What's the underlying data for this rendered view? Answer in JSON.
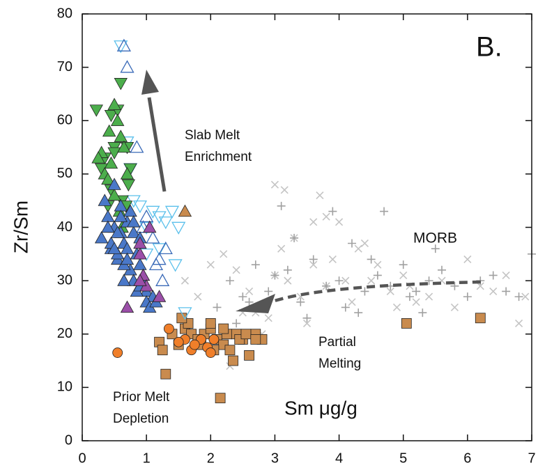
{
  "chart_data": {
    "type": "scatter",
    "y_label": "Zr/Sm",
    "x_label": "Sm μg/g",
    "annotations": {
      "panel": "B.",
      "slab_melt": [
        "Slab Melt",
        "Enrichment"
      ],
      "morb": "MORB",
      "partial_melting": [
        "Partial",
        "Melting"
      ],
      "prior_melt": [
        "Prior Melt",
        "Depletion"
      ]
    },
    "xlim": [
      0,
      7
    ],
    "xticks": [
      0,
      1,
      2,
      3,
      4,
      5,
      6,
      7
    ],
    "ylim": [
      0,
      80
    ],
    "yticks": [
      0,
      10,
      20,
      30,
      40,
      50,
      60,
      70,
      80
    ],
    "series": [
      {
        "marker": "x",
        "color": "#c4c4c4",
        "fill": false,
        "x": [
          1.6,
          1.8,
          2.0,
          2.2,
          2.4,
          2.5,
          2.6,
          2.8,
          3.0,
          3.1,
          3.2,
          3.4,
          3.5,
          3.6,
          3.7,
          3.8,
          3.9,
          4.0,
          4.1,
          4.2,
          4.3,
          4.5,
          4.6,
          4.8,
          5.0,
          5.2,
          5.4,
          5.6,
          5.8,
          6.0,
          6.2,
          6.4,
          6.6,
          6.8,
          6.9,
          3.15,
          3.6,
          2.7,
          2.3,
          3.3,
          4.4,
          5.1,
          3.0,
          2.9,
          3.8,
          4.9
        ],
        "values": [
          30,
          27,
          33,
          35,
          32,
          24,
          28,
          20,
          48,
          36,
          30,
          27,
          22,
          33,
          46,
          29,
          34,
          41,
          30,
          26,
          36,
          30,
          33,
          28,
          31,
          26,
          27,
          30,
          25,
          34,
          29,
          28,
          31,
          22,
          27,
          47,
          41,
          24,
          14,
          38,
          37,
          29,
          31,
          23,
          42,
          25
        ]
      },
      {
        "marker": "plus",
        "color": "#a0a0a0",
        "fill": false,
        "x": [
          2.1,
          2.3,
          2.5,
          2.7,
          2.9,
          3.0,
          3.2,
          3.4,
          3.6,
          3.8,
          4.0,
          4.2,
          4.4,
          4.6,
          4.8,
          5.0,
          5.2,
          5.4,
          5.6,
          5.8,
          6.0,
          6.2,
          6.4,
          6.6,
          6.8,
          7.0,
          3.1,
          3.5,
          3.9,
          4.3,
          4.7,
          5.1,
          5.5,
          2.6,
          2.4,
          3.3,
          4.1,
          4.5,
          5.3
        ],
        "values": [
          25,
          30,
          27,
          33,
          28,
          31,
          32,
          26,
          34,
          29,
          30,
          37,
          28,
          31,
          29,
          33,
          28,
          30,
          32,
          29,
          27,
          30,
          31,
          28,
          27,
          35,
          44,
          23,
          43,
          24,
          43,
          27,
          36,
          26,
          22,
          38,
          25,
          34,
          24
        ]
      },
      {
        "marker": "square",
        "color": "#c98b4e",
        "fill": true,
        "x": [
          1.2,
          1.25,
          1.3,
          1.4,
          1.5,
          1.6,
          1.7,
          1.8,
          1.9,
          2.0,
          2.1,
          2.2,
          2.3,
          2.4,
          2.5,
          2.6,
          2.7,
          2.8,
          2.15,
          2.35,
          2.45,
          2.55,
          1.65,
          1.85,
          2.05,
          2.25,
          5.05,
          6.2,
          1.55,
          2.0,
          2.2,
          2.7
        ],
        "values": [
          18.5,
          17,
          12.5,
          20,
          18,
          21,
          20,
          19,
          20,
          21,
          19,
          18,
          17,
          20,
          19,
          16,
          20,
          19,
          8,
          15,
          19,
          20,
          22,
          18,
          17,
          20,
          22,
          23,
          23,
          22,
          21,
          19
        ]
      },
      {
        "marker": "circle",
        "color": "#f07f2a",
        "fill": true,
        "x": [
          0.55,
          1.35,
          1.6,
          1.7,
          1.85,
          1.95,
          2.0,
          1.75,
          2.05,
          1.5
        ],
        "values": [
          16.5,
          21,
          19,
          17,
          19,
          17.5,
          16.5,
          18,
          19,
          18.5
        ]
      },
      {
        "marker": "tri-down",
        "color": "#5bc0eb",
        "fill": false,
        "x": [
          0.6,
          0.7,
          0.75,
          0.8,
          0.9,
          1.0,
          1.1,
          1.2,
          1.3,
          1.4,
          1.5,
          1.2,
          1.0,
          1.6,
          1.45
        ],
        "values": [
          74,
          56,
          51,
          45,
          44,
          40,
          43,
          42,
          41,
          43,
          40,
          36,
          35,
          24,
          33
        ]
      },
      {
        "marker": "tri-up",
        "color": "#3a6ab8",
        "fill": false,
        "x": [
          0.65,
          0.7,
          0.85,
          1.0,
          1.1,
          1.2,
          1.25,
          1.3,
          1.15,
          0.95
        ],
        "values": [
          74,
          70,
          55,
          42,
          38,
          34,
          30,
          36,
          33,
          40
        ]
      },
      {
        "marker": "tri-down",
        "color": "#4cae4c",
        "fill": true,
        "x": [
          0.22,
          0.45,
          0.5,
          0.55,
          0.6,
          0.7,
          0.75,
          0.35,
          0.4,
          0.62,
          0.68,
          0.3,
          0.45,
          0.72,
          0.5
        ],
        "values": [
          62,
          61,
          55,
          62,
          67,
          55,
          51,
          53,
          44,
          45,
          44,
          51,
          47,
          48,
          54
        ]
      },
      {
        "marker": "tri-up",
        "color": "#4cae4c",
        "fill": true,
        "x": [
          0.3,
          0.42,
          0.5,
          0.55,
          0.6,
          0.35,
          0.45,
          0.65,
          0.7,
          0.5,
          0.4,
          0.58,
          0.25,
          0.62
        ],
        "values": [
          54,
          58,
          63,
          60,
          57,
          50,
          52,
          55,
          50,
          46,
          49,
          43,
          53,
          40
        ]
      },
      {
        "marker": "tri-up",
        "color": "#4a78c8",
        "fill": true,
        "x": [
          0.3,
          0.4,
          0.45,
          0.5,
          0.55,
          0.6,
          0.65,
          0.7,
          0.75,
          0.8,
          0.85,
          0.9,
          0.95,
          1.0,
          1.1,
          0.35,
          0.5,
          0.6,
          0.7,
          0.8,
          0.9,
          1.0,
          0.4,
          0.55,
          0.65,
          0.75,
          0.85,
          0.95,
          1.05,
          0.45,
          0.6,
          0.7,
          0.8,
          0.5,
          0.65,
          0.9,
          1.15,
          0.55
        ],
        "values": [
          38,
          42,
          36,
          40,
          34,
          44,
          37,
          41,
          32,
          39,
          35,
          33,
          30,
          28,
          27,
          45,
          48,
          39,
          36,
          30,
          38,
          26,
          40,
          35,
          33,
          43,
          28,
          31,
          25,
          37,
          42,
          34,
          41,
          36,
          30,
          29,
          26,
          39
        ]
      },
      {
        "marker": "tri-up",
        "color": "#9b4fa8",
        "fill": true,
        "x": [
          0.7,
          0.9,
          0.95,
          1.0,
          1.05,
          0.9,
          1.2,
          0.9
        ],
        "values": [
          25,
          35,
          31,
          29,
          40,
          30,
          27,
          37
        ]
      },
      {
        "marker": "tri-up",
        "color": "#c98b4e",
        "fill": true,
        "x": [
          1.6
        ],
        "values": [
          43
        ]
      }
    ]
  }
}
